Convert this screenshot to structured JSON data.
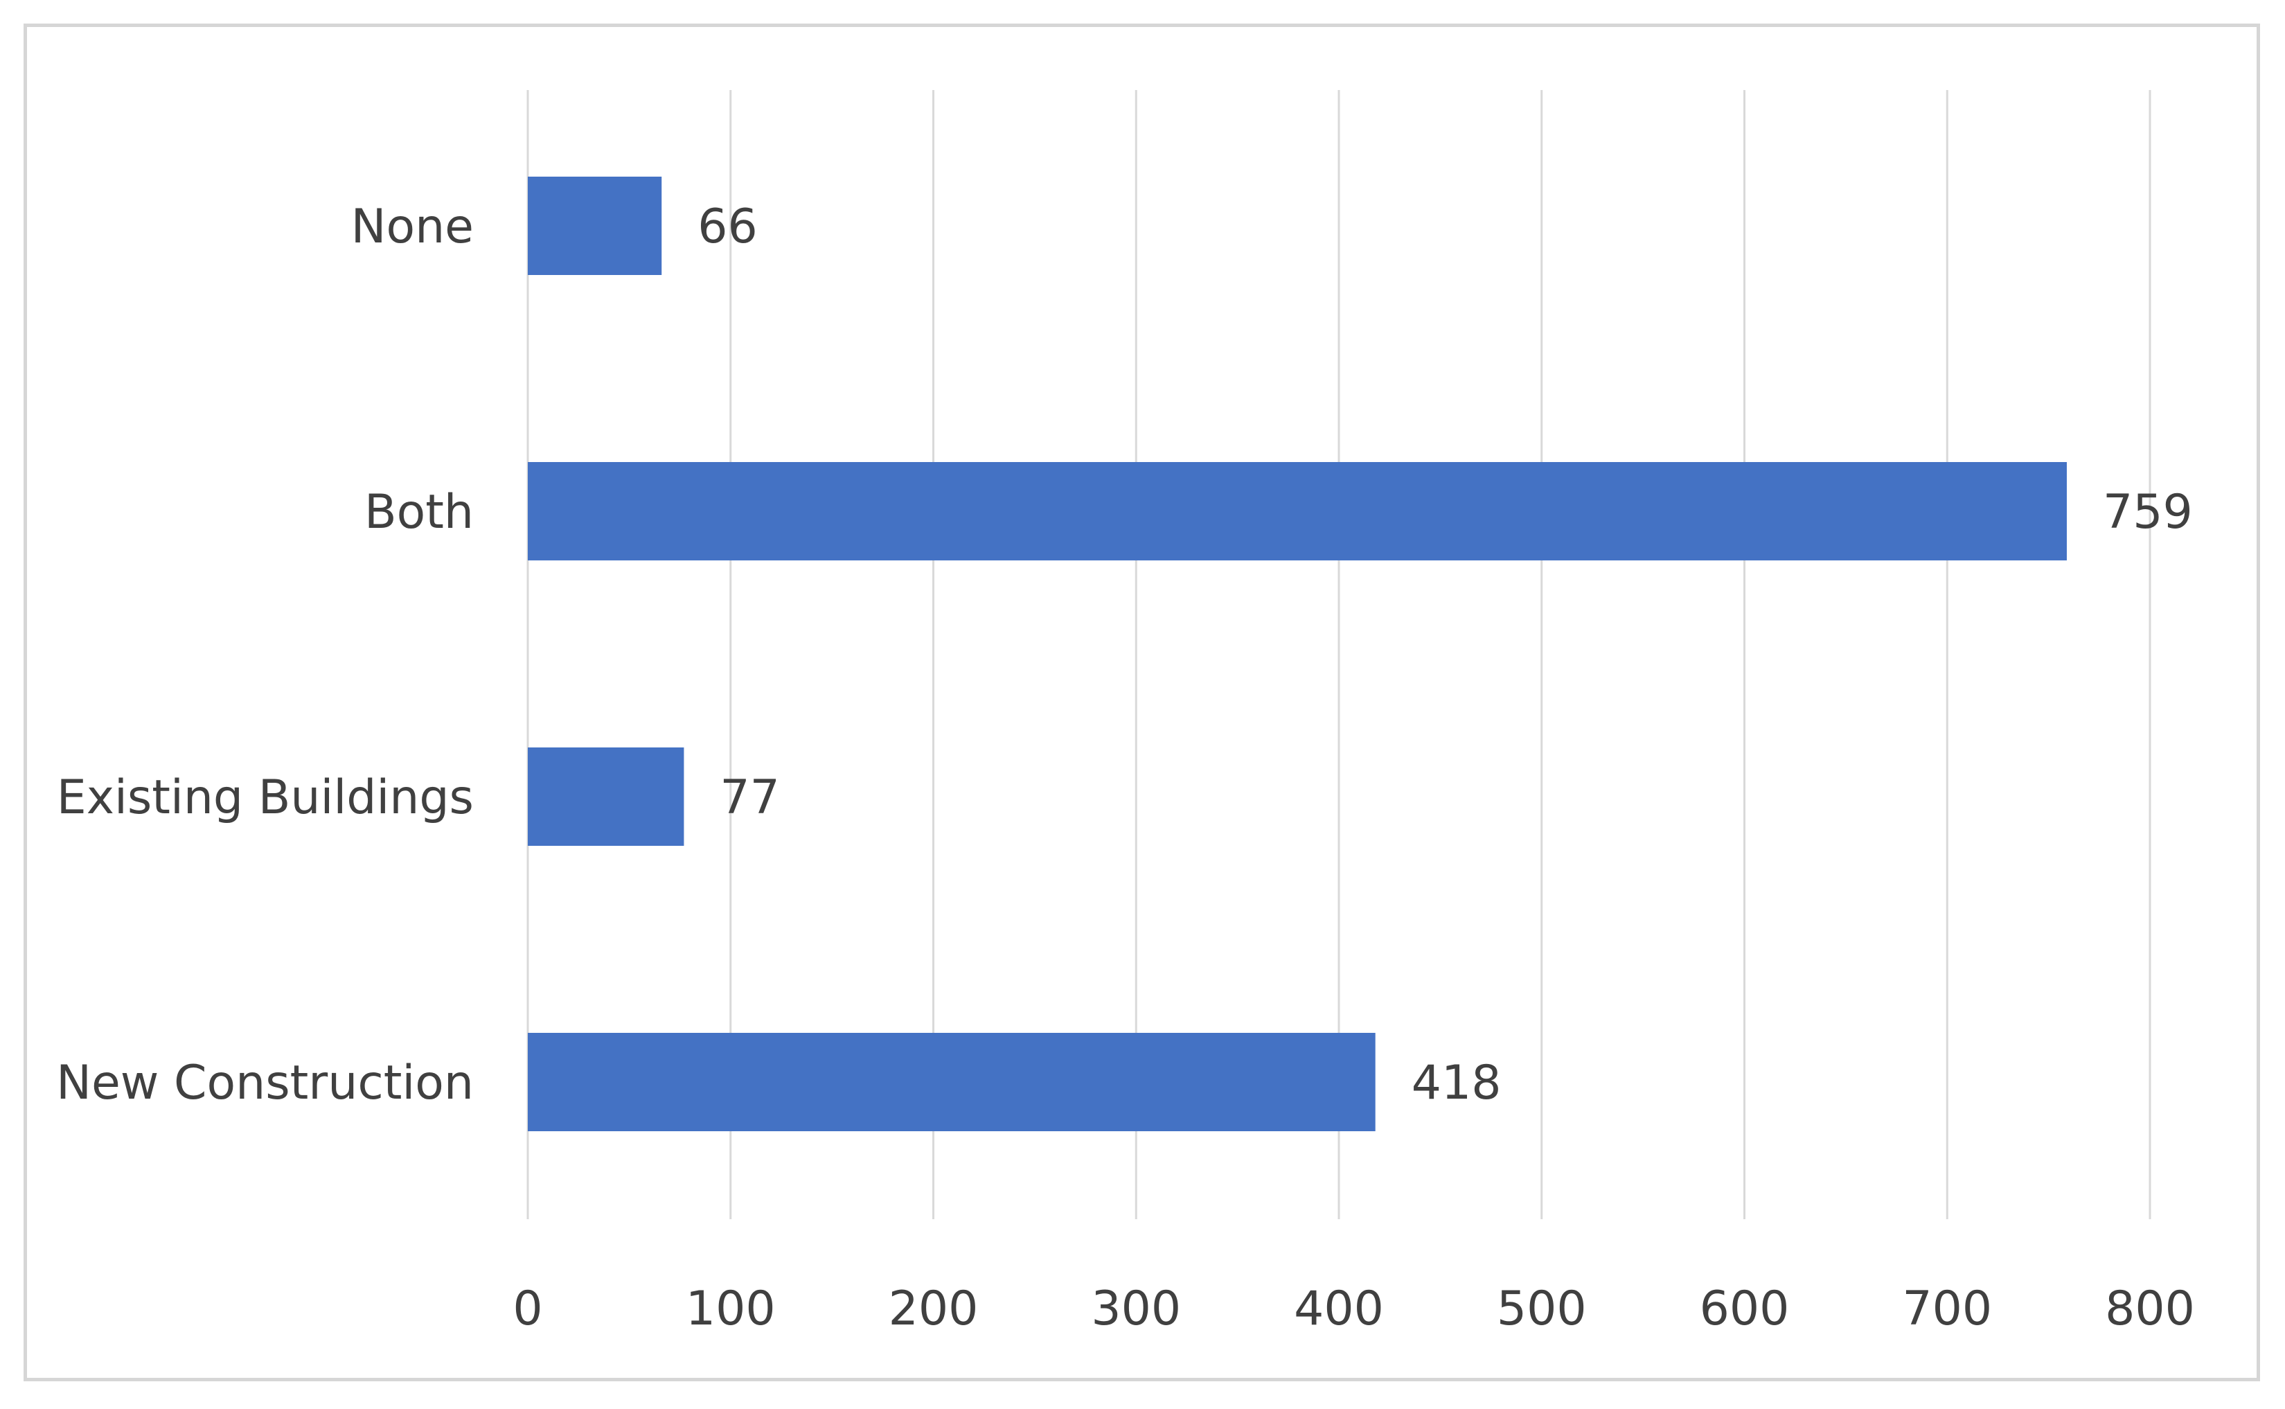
{
  "chart_data": {
    "type": "bar",
    "orientation": "horizontal",
    "categories": [
      "None",
      "Both",
      "Existing Buildings",
      "New Construction"
    ],
    "values": [
      66,
      759,
      77,
      418
    ],
    "xlim": [
      0,
      800
    ],
    "xticks": [
      0,
      100,
      200,
      300,
      400,
      500,
      600,
      700,
      800
    ],
    "grid": true,
    "data_labels": true,
    "bar_color": "#4472c4",
    "gridline_color": "#d9d9d9",
    "text_color": "#404040"
  }
}
